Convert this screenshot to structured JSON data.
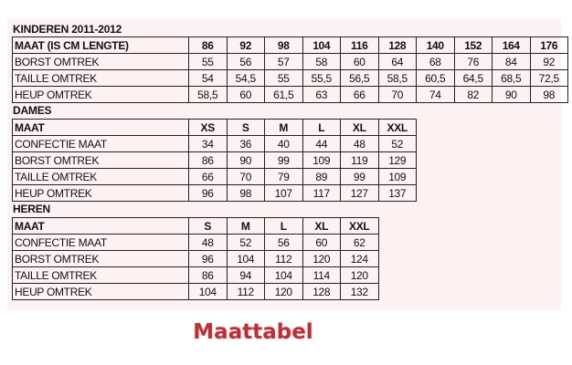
{
  "sections": [
    {
      "title": "KINDEREN 2011-2012",
      "rows": [
        [
          "MAAT (IS CM LENGTE)",
          "86",
          "92",
          "98",
          "104",
          "116",
          "128",
          "140",
          "152",
          "164",
          "176"
        ],
        [
          "BORST OMTREK",
          "55",
          "56",
          "57",
          "58",
          "60",
          "64",
          "68",
          "76",
          "84",
          "92"
        ],
        [
          "TAILLE OMTREK",
          "54",
          "54,5",
          "55",
          "55,5",
          "56,5",
          "58,5",
          "60,5",
          "64,5",
          "68,5",
          "72,5"
        ],
        [
          "HEUP OMTREK",
          "58,5",
          "60",
          "61,5",
          "63",
          "66",
          "70",
          "74",
          "82",
          "90",
          "98"
        ]
      ]
    },
    {
      "title": "DAMES",
      "rows": [
        [
          "MAAT",
          "XS",
          "S",
          "M",
          "L",
          "XL",
          "XXL"
        ],
        [
          "CONFECTIE MAAT",
          "34",
          "36",
          "40",
          "44",
          "48",
          "52"
        ],
        [
          "BORST OMTREK",
          "86",
          "90",
          "99",
          "109",
          "119",
          "129"
        ],
        [
          "TAILLE OMTREK",
          "66",
          "70",
          "79",
          "89",
          "99",
          "109"
        ],
        [
          "HEUP OMTREK",
          "96",
          "98",
          "107",
          "117",
          "127",
          "137"
        ]
      ]
    },
    {
      "title": "HEREN",
      "rows": [
        [
          "MAAT",
          "S",
          "M",
          "L",
          "XL",
          "XXL"
        ],
        [
          "CONFECTIE MAAT",
          "48",
          "52",
          "56",
          "60",
          "62"
        ],
        [
          "BORST OMTREK",
          "96",
          "104",
          "112",
          "120",
          "124"
        ],
        [
          "TAILLE OMTREK",
          "86",
          "94",
          "104",
          "114",
          "120"
        ],
        [
          "HEUP OMTREK",
          "104",
          "112",
          "120",
          "128",
          "132"
        ]
      ]
    }
  ],
  "caption": "Maattabel",
  "colors": {
    "caption": "#b5323a",
    "panel": "#fcf1f3"
  }
}
